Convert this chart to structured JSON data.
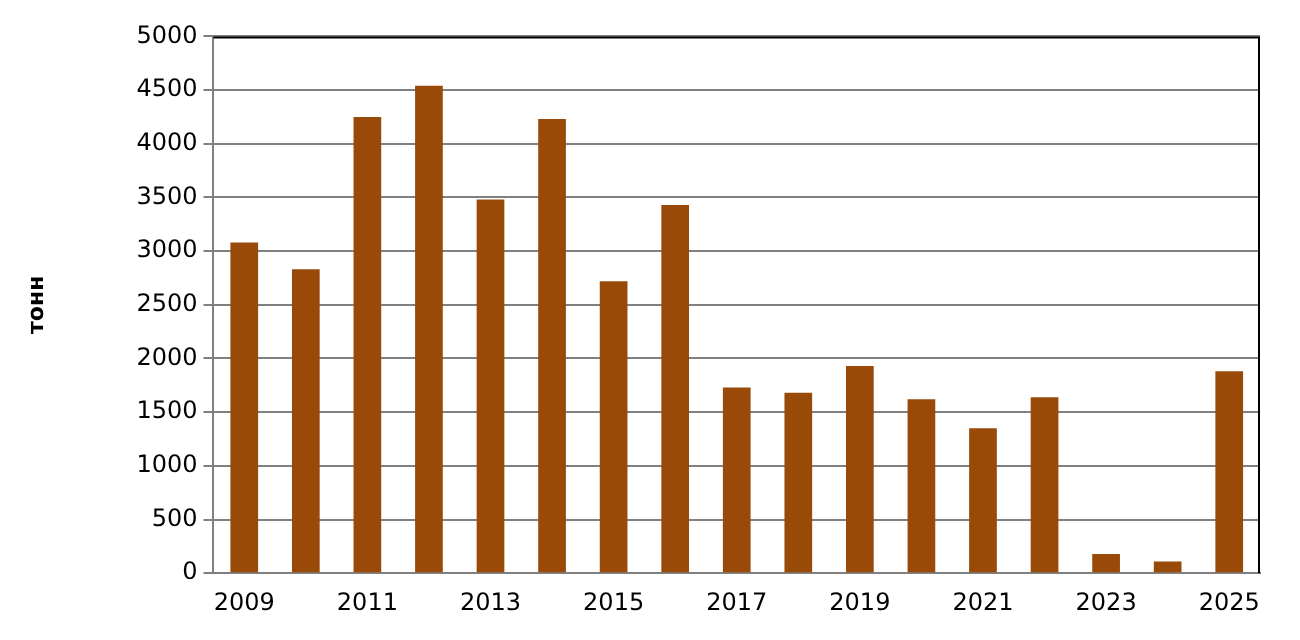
{
  "chart_data": {
    "type": "bar",
    "ylabel": "тонн",
    "categories": [
      "2009",
      null,
      "2011",
      null,
      "2013",
      null,
      "2015",
      null,
      "2017",
      null,
      "2019",
      null,
      "2021",
      null,
      "2023",
      null,
      "2025"
    ],
    "values": [
      3080,
      2830,
      4250,
      4540,
      3480,
      4230,
      2720,
      3430,
      1730,
      1680,
      1930,
      1620,
      1350,
      1640,
      180,
      110,
      1880
    ],
    "color": "#994a08",
    "ylim": [
      0,
      5000
    ],
    "yticks": [
      0,
      500,
      1000,
      1500,
      2000,
      2500,
      3000,
      3500,
      4000,
      4500,
      5000
    ],
    "grid": "y",
    "legend": false
  }
}
